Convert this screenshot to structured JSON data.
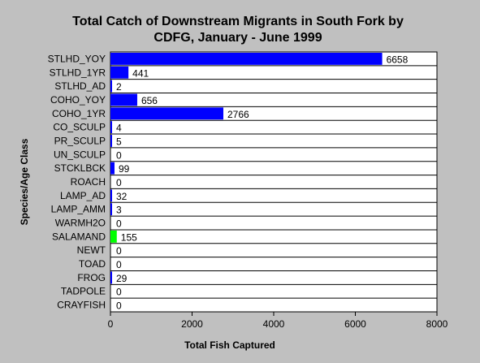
{
  "chart_data": {
    "type": "bar",
    "orientation": "horizontal",
    "title_lines": [
      "Total Catch of Downstream Migrants in South Fork by",
      "CDFG, January - June 1999"
    ],
    "xlabel": "Total Fish Captured",
    "ylabel": "Species/Age Class",
    "xlim": [
      0,
      8000
    ],
    "xticks": [
      0,
      2000,
      4000,
      6000,
      8000
    ],
    "grid": "horizontal",
    "legend": "none",
    "categories": [
      "STLHD_YOY",
      "STLHD_1YR",
      "STLHD_AD",
      "COHO_YOY",
      "COHO_1YR",
      "CO_SCULP",
      "PR_SCULP",
      "UN_SCULP",
      "STCKLBCK",
      "ROACH",
      "LAMP_AD",
      "LAMP_AMM",
      "WARMH2O",
      "SALAMAND",
      "NEWT",
      "TOAD",
      "FROG",
      "TADPOLE",
      "CRAYFISH"
    ],
    "values": [
      6658,
      441,
      2,
      656,
      2766,
      4,
      5,
      0,
      99,
      0,
      32,
      3,
      0,
      155,
      0,
      0,
      29,
      0,
      0
    ],
    "colors": [
      "#0000ff",
      "#0000ff",
      "#0000ff",
      "#0000ff",
      "#0000ff",
      "#0000ff",
      "#0000ff",
      "#0000ff",
      "#0000ff",
      "#0000ff",
      "#0000ff",
      "#0000ff",
      "#0000ff",
      "#00ff00",
      "#0000ff",
      "#0000ff",
      "#0000ff",
      "#0000ff",
      "#0000ff"
    ]
  }
}
